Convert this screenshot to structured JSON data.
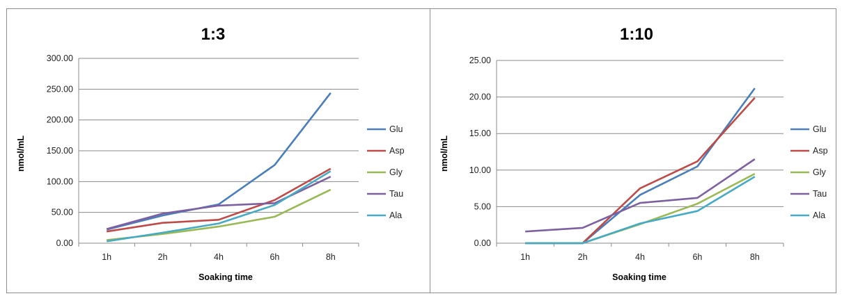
{
  "chart_data": [
    {
      "type": "line",
      "title": "1:3",
      "xlabel": "Soaking time",
      "ylabel": "nmol/mL",
      "categories": [
        "1h",
        "2h",
        "4h",
        "6h",
        "8h"
      ],
      "ylim": [
        0,
        300
      ],
      "yticks": [
        "0.00",
        "50.00",
        "100.00",
        "150.00",
        "200.00",
        "250.00",
        "300.00"
      ],
      "ytick_values": [
        0,
        50,
        100,
        150,
        200,
        250,
        300
      ],
      "grid": true,
      "legend": "right",
      "series": [
        {
          "name": "Glu",
          "color": "#4a7ebb",
          "values": [
            22,
            45,
            63,
            127,
            244
          ]
        },
        {
          "name": "Asp",
          "color": "#be4b48",
          "values": [
            19,
            33,
            38,
            70,
            121
          ]
        },
        {
          "name": "Gly",
          "color": "#98b954",
          "values": [
            5,
            15,
            27,
            43,
            87
          ]
        },
        {
          "name": "Tau",
          "color": "#7d60a0",
          "values": [
            23,
            48,
            61,
            65,
            108
          ]
        },
        {
          "name": "Ala",
          "color": "#46aac5",
          "values": [
            3,
            17,
            32,
            62,
            117
          ]
        }
      ]
    },
    {
      "type": "line",
      "title": "1:10",
      "xlabel": "Soaking time",
      "ylabel": "nmol/mL",
      "categories": [
        "1h",
        "2h",
        "4h",
        "6h",
        "8h"
      ],
      "ylim": [
        0,
        25
      ],
      "yticks": [
        "0.00",
        "5.00",
        "10.00",
        "15.00",
        "20.00",
        "25.00"
      ],
      "ytick_values": [
        0,
        5,
        10,
        15,
        20,
        25
      ],
      "grid": true,
      "legend": "right",
      "series": [
        {
          "name": "Glu",
          "color": "#4a7ebb",
          "values": [
            0,
            0,
            6.6,
            10.5,
            21.2
          ]
        },
        {
          "name": "Asp",
          "color": "#be4b48",
          "values": [
            0,
            0,
            7.5,
            11.2,
            19.9
          ]
        },
        {
          "name": "Gly",
          "color": "#98b954",
          "values": [
            0,
            0,
            2.6,
            5.4,
            9.5
          ]
        },
        {
          "name": "Tau",
          "color": "#7d60a0",
          "values": [
            1.6,
            2.1,
            5.5,
            6.2,
            11.5
          ]
        },
        {
          "name": "Ala",
          "color": "#46aac5",
          "values": [
            0,
            0,
            2.7,
            4.4,
            9.1
          ]
        }
      ]
    }
  ]
}
